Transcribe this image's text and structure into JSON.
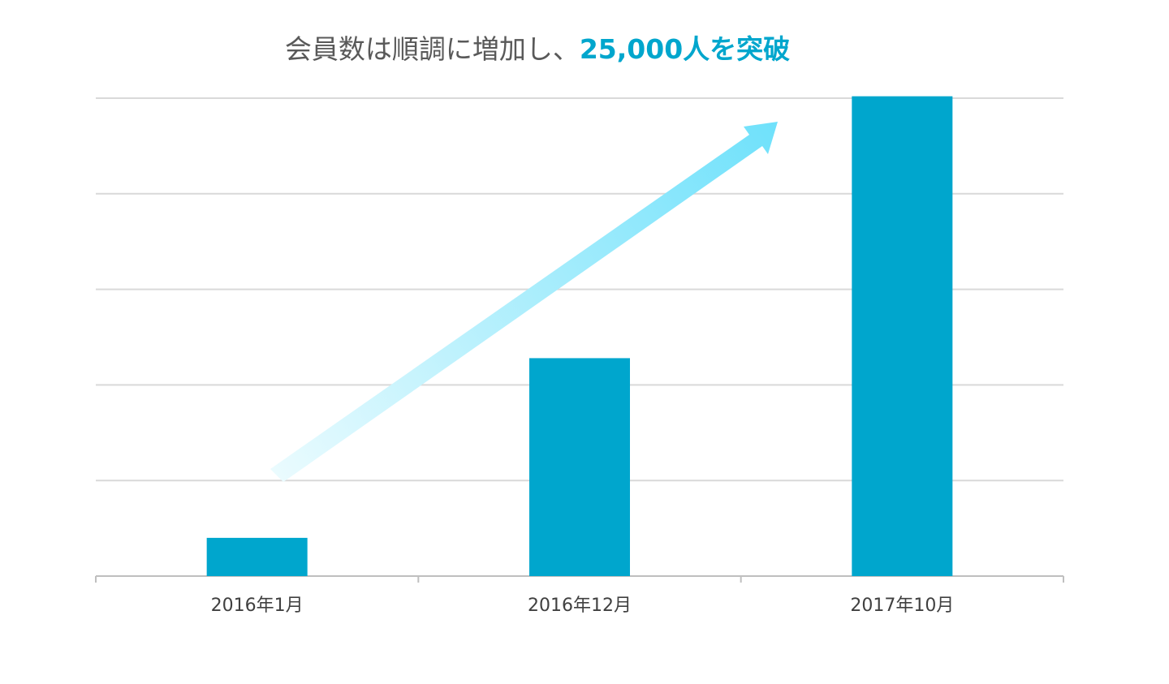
{
  "chart_data": {
    "type": "bar",
    "title": "会員数は順調に増加し、",
    "title_highlight": "25,000人を突破",
    "categories": [
      "2016年1月",
      "2016年12月",
      "2017年10月"
    ],
    "values": [
      2000,
      11400,
      25100
    ],
    "color": "#00a6cd",
    "ylim": [
      0,
      25000
    ],
    "yticks": [
      0,
      5000,
      10000,
      15000,
      20000,
      25000
    ],
    "grid": true
  }
}
